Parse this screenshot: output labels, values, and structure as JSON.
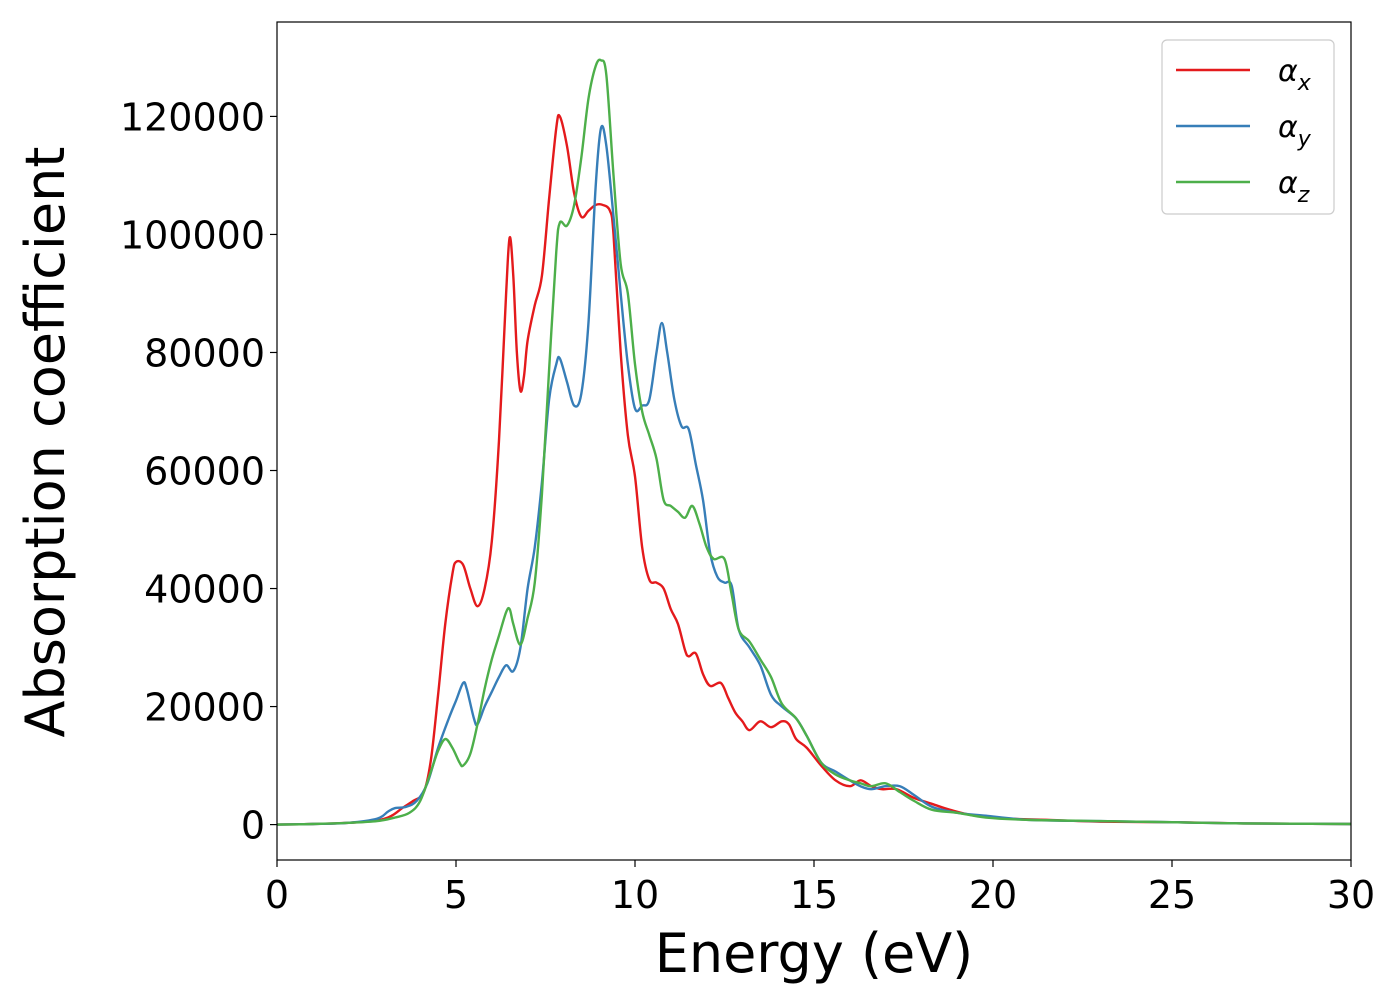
{
  "chart_data": {
    "type": "line",
    "title": "",
    "xlabel": "Energy (eV)",
    "ylabel": "Absorption coefficient",
    "xlim": [
      0,
      30
    ],
    "ylim": [
      -6000,
      136000
    ],
    "xticks": [
      0,
      5,
      10,
      15,
      20,
      25,
      30
    ],
    "xtick_labels": [
      "0",
      "5",
      "10",
      "15",
      "20",
      "25",
      "30"
    ],
    "yticks": [
      0,
      20000,
      40000,
      60000,
      80000,
      100000,
      120000
    ],
    "ytick_labels": [
      "0",
      "20000",
      "40000",
      "60000",
      "80000",
      "100000",
      "120000"
    ],
    "grid": false,
    "legend_position": "top-right",
    "series": [
      {
        "name": "αx",
        "legend_symbol": "α",
        "legend_subscript": "x",
        "color": "#e41a1c",
        "points": [
          [
            0,
            0
          ],
          [
            1,
            100
          ],
          [
            2,
            300
          ],
          [
            2.8,
            700
          ],
          [
            3.2,
            1500
          ],
          [
            3.5,
            2800
          ],
          [
            3.8,
            4000
          ],
          [
            4.1,
            5500
          ],
          [
            4.3,
            11000
          ],
          [
            4.5,
            22000
          ],
          [
            4.7,
            34000
          ],
          [
            4.9,
            42500
          ],
          [
            5.0,
            44500
          ],
          [
            5.2,
            44000
          ],
          [
            5.4,
            40000
          ],
          [
            5.6,
            37000
          ],
          [
            5.8,
            40000
          ],
          [
            6.0,
            48000
          ],
          [
            6.2,
            65000
          ],
          [
            6.4,
            90000
          ],
          [
            6.5,
            99500
          ],
          [
            6.6,
            93000
          ],
          [
            6.7,
            80000
          ],
          [
            6.8,
            73500
          ],
          [
            6.9,
            76000
          ],
          [
            7.0,
            82000
          ],
          [
            7.2,
            88000
          ],
          [
            7.4,
            93000
          ],
          [
            7.6,
            106000
          ],
          [
            7.8,
            118000
          ],
          [
            7.9,
            120000
          ],
          [
            8.1,
            115000
          ],
          [
            8.3,
            107000
          ],
          [
            8.5,
            103000
          ],
          [
            8.7,
            104000
          ],
          [
            8.9,
            105000
          ],
          [
            9.1,
            105000
          ],
          [
            9.3,
            104000
          ],
          [
            9.4,
            100000
          ],
          [
            9.6,
            80000
          ],
          [
            9.8,
            66000
          ],
          [
            10.0,
            59000
          ],
          [
            10.2,
            47000
          ],
          [
            10.4,
            41500
          ],
          [
            10.6,
            41000
          ],
          [
            10.8,
            40000
          ],
          [
            11.0,
            36500
          ],
          [
            11.2,
            34000
          ],
          [
            11.4,
            29500
          ],
          [
            11.5,
            28500
          ],
          [
            11.7,
            29000
          ],
          [
            11.9,
            25500
          ],
          [
            12.1,
            23500
          ],
          [
            12.4,
            24000
          ],
          [
            12.6,
            21500
          ],
          [
            12.8,
            19000
          ],
          [
            13.0,
            17500
          ],
          [
            13.2,
            16000
          ],
          [
            13.5,
            17500
          ],
          [
            13.8,
            16500
          ],
          [
            14.1,
            17500
          ],
          [
            14.3,
            17000
          ],
          [
            14.5,
            14500
          ],
          [
            14.8,
            13000
          ],
          [
            15.2,
            10000
          ],
          [
            15.6,
            7500
          ],
          [
            16.0,
            6500
          ],
          [
            16.3,
            7500
          ],
          [
            16.6,
            6500
          ],
          [
            16.9,
            6000
          ],
          [
            17.3,
            6000
          ],
          [
            17.8,
            4500
          ],
          [
            18.3,
            3500
          ],
          [
            18.8,
            2500
          ],
          [
            19.5,
            1500
          ],
          [
            20.5,
            1000
          ],
          [
            21.5,
            800
          ],
          [
            23,
            500
          ],
          [
            25,
            400
          ],
          [
            27,
            200
          ],
          [
            30,
            100
          ]
        ]
      },
      {
        "name": "αy",
        "legend_symbol": "α",
        "legend_subscript": "y",
        "color": "#377eb8",
        "points": [
          [
            0,
            0
          ],
          [
            1,
            100
          ],
          [
            2,
            300
          ],
          [
            2.8,
            1000
          ],
          [
            3.1,
            2200
          ],
          [
            3.3,
            2800
          ],
          [
            3.6,
            3000
          ],
          [
            3.9,
            4000
          ],
          [
            4.2,
            7000
          ],
          [
            4.5,
            13000
          ],
          [
            4.8,
            18000
          ],
          [
            5.0,
            21000
          ],
          [
            5.2,
            24000
          ],
          [
            5.3,
            23000
          ],
          [
            5.5,
            18000
          ],
          [
            5.6,
            17000
          ],
          [
            5.8,
            20000
          ],
          [
            6.0,
            22500
          ],
          [
            6.2,
            25000
          ],
          [
            6.4,
            27000
          ],
          [
            6.6,
            26000
          ],
          [
            6.8,
            30000
          ],
          [
            7.0,
            40000
          ],
          [
            7.2,
            47000
          ],
          [
            7.4,
            58000
          ],
          [
            7.6,
            72000
          ],
          [
            7.8,
            78000
          ],
          [
            7.9,
            79000
          ],
          [
            8.1,
            75000
          ],
          [
            8.3,
            71000
          ],
          [
            8.5,
            73000
          ],
          [
            8.7,
            85000
          ],
          [
            8.9,
            108000
          ],
          [
            9.05,
            118000
          ],
          [
            9.2,
            115000
          ],
          [
            9.4,
            103000
          ],
          [
            9.6,
            90000
          ],
          [
            9.8,
            78000
          ],
          [
            10.0,
            70500
          ],
          [
            10.2,
            71000
          ],
          [
            10.4,
            72000
          ],
          [
            10.6,
            80000
          ],
          [
            10.75,
            85000
          ],
          [
            10.9,
            80000
          ],
          [
            11.1,
            72000
          ],
          [
            11.3,
            67500
          ],
          [
            11.5,
            67000
          ],
          [
            11.7,
            61000
          ],
          [
            11.9,
            55000
          ],
          [
            12.1,
            46000
          ],
          [
            12.3,
            42000
          ],
          [
            12.5,
            41000
          ],
          [
            12.7,
            40500
          ],
          [
            12.9,
            33000
          ],
          [
            13.2,
            30000
          ],
          [
            13.5,
            27000
          ],
          [
            13.8,
            22000
          ],
          [
            14.1,
            20000
          ],
          [
            14.5,
            18000
          ],
          [
            14.8,
            15000
          ],
          [
            15.2,
            10500
          ],
          [
            15.6,
            9000
          ],
          [
            16.0,
            7500
          ],
          [
            16.3,
            6500
          ],
          [
            16.6,
            6000
          ],
          [
            17.0,
            6500
          ],
          [
            17.4,
            6500
          ],
          [
            17.8,
            5000
          ],
          [
            18.3,
            3000
          ],
          [
            19.0,
            2000
          ],
          [
            19.8,
            1500
          ],
          [
            21,
            800
          ],
          [
            23,
            600
          ],
          [
            25,
            400
          ],
          [
            27,
            200
          ],
          [
            30,
            100
          ]
        ]
      },
      {
        "name": "αz",
        "legend_symbol": "α",
        "legend_subscript": "z",
        "color": "#4daf4a",
        "points": [
          [
            0,
            0
          ],
          [
            1,
            100
          ],
          [
            2,
            300
          ],
          [
            2.8,
            600
          ],
          [
            3.3,
            1200
          ],
          [
            3.7,
            2000
          ],
          [
            4.0,
            4000
          ],
          [
            4.3,
            9000
          ],
          [
            4.5,
            12500
          ],
          [
            4.7,
            14500
          ],
          [
            4.9,
            13000
          ],
          [
            5.1,
            10500
          ],
          [
            5.2,
            10000
          ],
          [
            5.4,
            12000
          ],
          [
            5.6,
            17000
          ],
          [
            5.8,
            23000
          ],
          [
            6.0,
            28000
          ],
          [
            6.2,
            32000
          ],
          [
            6.4,
            36000
          ],
          [
            6.5,
            36500
          ],
          [
            6.6,
            34000
          ],
          [
            6.8,
            30500
          ],
          [
            7.0,
            35000
          ],
          [
            7.2,
            41000
          ],
          [
            7.4,
            56000
          ],
          [
            7.6,
            77000
          ],
          [
            7.8,
            97000
          ],
          [
            7.9,
            102000
          ],
          [
            8.1,
            101500
          ],
          [
            8.3,
            105000
          ],
          [
            8.5,
            113000
          ],
          [
            8.7,
            123000
          ],
          [
            8.9,
            128500
          ],
          [
            9.05,
            129500
          ],
          [
            9.2,
            127000
          ],
          [
            9.4,
            110000
          ],
          [
            9.6,
            95000
          ],
          [
            9.8,
            90000
          ],
          [
            10.0,
            78000
          ],
          [
            10.2,
            70000
          ],
          [
            10.4,
            66000
          ],
          [
            10.6,
            62000
          ],
          [
            10.8,
            55000
          ],
          [
            11.0,
            54000
          ],
          [
            11.2,
            53000
          ],
          [
            11.4,
            52000
          ],
          [
            11.6,
            54000
          ],
          [
            11.8,
            51000
          ],
          [
            12.0,
            47000
          ],
          [
            12.2,
            45000
          ],
          [
            12.5,
            45000
          ],
          [
            12.7,
            39000
          ],
          [
            12.9,
            33000
          ],
          [
            13.2,
            31000
          ],
          [
            13.5,
            28000
          ],
          [
            13.8,
            25000
          ],
          [
            14.1,
            20500
          ],
          [
            14.5,
            18000
          ],
          [
            14.8,
            15000
          ],
          [
            15.2,
            10500
          ],
          [
            15.6,
            8500
          ],
          [
            16.0,
            7500
          ],
          [
            16.3,
            7000
          ],
          [
            16.6,
            6500
          ],
          [
            17.0,
            7000
          ],
          [
            17.4,
            5500
          ],
          [
            17.8,
            4000
          ],
          [
            18.3,
            2500
          ],
          [
            19.0,
            2000
          ],
          [
            19.8,
            1200
          ],
          [
            21,
            800
          ],
          [
            23,
            600
          ],
          [
            25,
            400
          ],
          [
            27,
            200
          ],
          [
            30,
            100
          ]
        ]
      }
    ]
  }
}
